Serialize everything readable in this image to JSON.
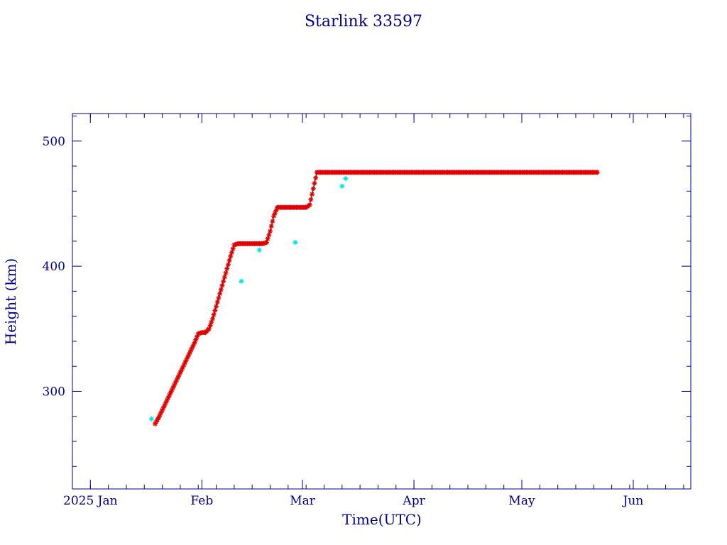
{
  "chart_data": {
    "type": "scatter",
    "title": "Starlink 33597",
    "xlabel": "Time(UTC)",
    "ylabel": "Height (km)",
    "xlim": [
      "2024-12-27",
      "2025-06-17"
    ],
    "ylim": [
      222,
      522
    ],
    "x_ticks": [
      {
        "date": "2025-01-01",
        "label": "2025 Jan"
      },
      {
        "date": "2025-02-01",
        "label": "Feb"
      },
      {
        "date": "2025-03-01",
        "label": "Mar"
      },
      {
        "date": "2025-04-01",
        "label": "Apr"
      },
      {
        "date": "2025-05-01",
        "label": "May"
      },
      {
        "date": "2025-06-01",
        "label": "Jun"
      }
    ],
    "y_ticks": [
      300,
      400,
      500
    ],
    "grid": false,
    "colors": {
      "axes": "#00008b",
      "primary": "#e00000",
      "secondary": "#00e5e5",
      "line": "#303030"
    },
    "series": [
      {
        "color": "#e00000",
        "marker": "asterisk",
        "x": [
          "2025-01-19",
          "2025-01-20",
          "2025-01-21",
          "2025-01-22",
          "2025-01-23",
          "2025-01-24",
          "2025-01-25",
          "2025-01-26",
          "2025-01-27",
          "2025-01-28",
          "2025-01-29",
          "2025-01-30",
          "2025-01-31",
          "2025-02-01",
          "2025-02-02",
          "2025-02-03",
          "2025-02-04",
          "2025-02-05",
          "2025-02-06",
          "2025-02-07",
          "2025-02-08",
          "2025-02-09",
          "2025-02-10",
          "2025-02-11",
          "2025-02-12",
          "2025-02-13",
          "2025-02-14",
          "2025-02-15",
          "2025-02-16",
          "2025-02-17",
          "2025-02-18",
          "2025-02-19",
          "2025-02-20",
          "2025-02-21",
          "2025-02-22",
          "2025-02-23",
          "2025-02-24",
          "2025-02-25",
          "2025-02-26",
          "2025-02-27",
          "2025-02-28",
          "2025-03-01",
          "2025-03-02",
          "2025-03-03",
          "2025-03-04",
          "2025-03-05",
          "2025-03-06",
          "2025-03-07",
          "2025-03-08",
          "2025-03-09",
          "2025-03-10",
          "2025-03-11",
          "2025-03-12",
          "2025-03-13",
          "2025-03-14",
          "2025-03-15",
          "2025-03-16",
          "2025-03-17",
          "2025-03-18",
          "2025-03-19",
          "2025-03-20",
          "2025-03-21",
          "2025-03-22",
          "2025-03-23",
          "2025-03-24",
          "2025-03-25",
          "2025-03-26",
          "2025-03-27",
          "2025-03-28",
          "2025-03-29",
          "2025-03-30",
          "2025-03-31",
          "2025-04-01",
          "2025-04-02",
          "2025-04-03",
          "2025-04-04",
          "2025-04-05",
          "2025-04-06",
          "2025-04-07",
          "2025-04-08",
          "2025-04-09",
          "2025-04-10",
          "2025-04-11",
          "2025-04-12",
          "2025-04-13",
          "2025-04-14",
          "2025-04-15",
          "2025-04-16",
          "2025-04-17",
          "2025-04-18",
          "2025-04-19",
          "2025-04-20",
          "2025-04-21",
          "2025-04-22",
          "2025-04-23",
          "2025-04-24",
          "2025-04-25",
          "2025-04-26",
          "2025-04-27",
          "2025-04-28",
          "2025-04-29",
          "2025-04-30",
          "2025-05-01",
          "2025-05-02",
          "2025-05-03",
          "2025-05-04",
          "2025-05-05",
          "2025-05-06",
          "2025-05-07",
          "2025-05-08",
          "2025-05-09",
          "2025-05-10",
          "2025-05-11",
          "2025-05-12",
          "2025-05-13",
          "2025-05-14",
          "2025-05-15",
          "2025-05-16",
          "2025-05-17",
          "2025-05-18",
          "2025-05-19",
          "2025-05-20",
          "2025-05-21",
          "2025-05-22"
        ],
        "y": [
          274,
          279,
          285,
          291,
          297,
          303,
          309,
          315,
          321,
          327,
          333,
          339,
          346,
          347,
          347,
          350,
          358,
          368,
          378,
          388,
          398,
          408,
          417,
          418,
          418,
          418,
          418,
          418,
          418,
          418,
          418,
          419,
          428,
          440,
          447,
          447,
          447,
          447,
          447,
          447,
          447,
          447,
          447,
          449,
          462,
          475,
          475,
          475,
          475,
          475,
          475,
          475,
          475,
          475,
          475,
          475,
          475,
          475,
          475,
          475,
          475,
          475,
          475,
          475,
          475,
          475,
          475,
          475,
          475,
          475,
          475,
          475,
          475,
          475,
          475,
          475,
          475,
          475,
          475,
          475,
          475,
          475,
          475,
          475,
          475,
          475,
          475,
          475,
          475,
          475,
          475,
          475,
          475,
          475,
          475,
          475,
          475,
          475,
          475,
          475,
          475,
          475,
          475,
          475,
          475,
          475,
          475,
          475,
          475,
          475,
          475,
          475,
          475,
          475,
          475,
          475,
          475,
          475,
          475,
          475,
          475,
          475,
          475,
          475
        ]
      },
      {
        "color": "#00e5e5",
        "marker": "asterisk",
        "x": [
          "2025-01-18",
          "2025-02-12",
          "2025-02-17",
          "2025-02-27",
          "2025-03-12",
          "2025-03-13"
        ],
        "y": [
          278,
          388,
          413,
          419,
          464,
          470
        ]
      }
    ]
  }
}
